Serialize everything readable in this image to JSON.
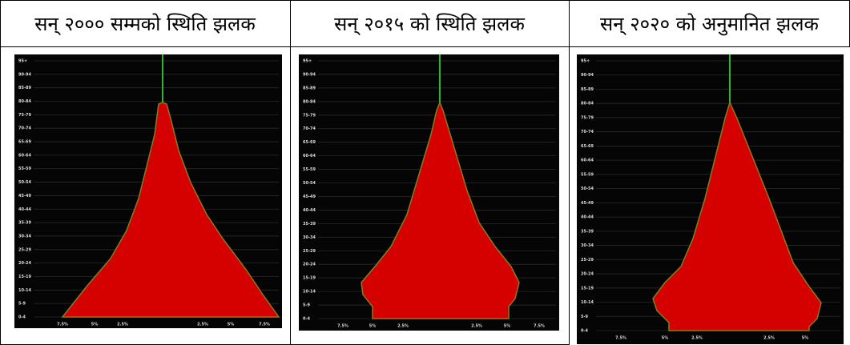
{
  "headers": [
    "सन् २००० सम्मको स्थिति झलक",
    "सन् २०१५ को स्थिति झलक",
    "सन् २०२० को अनुमानित झलक"
  ],
  "age_labels": [
    "95+",
    "90-94",
    "85-89",
    "80-84",
    "75-79",
    "70-74",
    "65-69",
    "60-64",
    "55-59",
    "50-54",
    "45-49",
    "40-44",
    "35-39",
    "30-34",
    "25-29",
    "20-24",
    "15-19",
    "10-14",
    "5-9",
    "0-4"
  ],
  "panels": [
    {
      "x_labels": [
        "7.5%",
        "5%",
        "2.5%",
        "2.5%",
        "5%",
        "7.5%"
      ]
    },
    {
      "x_labels": [
        "7.5%",
        "5%",
        "2.5%",
        "2.5%",
        "5%",
        "7.5%"
      ]
    },
    {
      "x_labels": [
        "7.5%",
        "5%",
        "2.5%",
        "2.5%",
        "5%"
      ]
    }
  ]
}
